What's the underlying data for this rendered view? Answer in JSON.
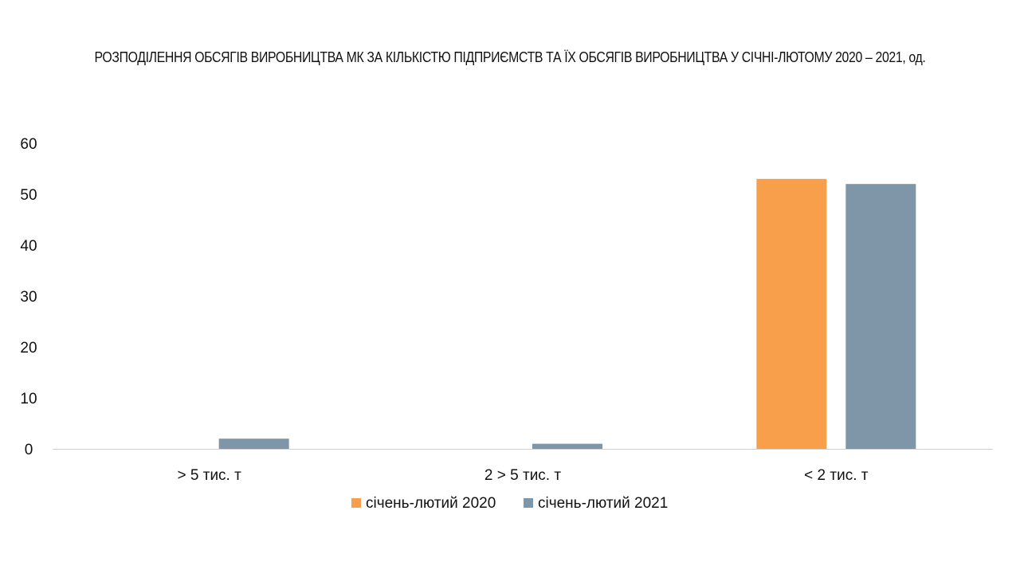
{
  "chart_data": {
    "type": "bar",
    "title": "РОЗПОДІЛЕННЯ ОБСЯГІВ ВИРОБНИЦТВА МК ЗА КІЛЬКІСТЮ ПІДПРИЄМСТВ ТА ЇХ ОБСЯГІВ ВИРОБНИЦТВА У СІЧНІ-ЛЮТОМУ 2020 – 2021, од.",
    "xlabel": "",
    "ylabel": "",
    "categories": [
      "> 5 тис. т",
      "2 > 5 тис. т",
      "< 2 тис. т"
    ],
    "series": [
      {
        "name": "січень-лютий 2020",
        "color": "#F79F4A",
        "values": [
          0,
          0,
          53
        ]
      },
      {
        "name": "січень-лютий 2021",
        "color": "#7F95A8",
        "values": [
          2,
          1,
          52
        ]
      }
    ],
    "ylim": [
      0,
      60
    ],
    "yticks": [
      "0",
      "10",
      "20",
      "30",
      "40",
      "50",
      "60"
    ],
    "grid": false,
    "legend_position": "bottom"
  }
}
